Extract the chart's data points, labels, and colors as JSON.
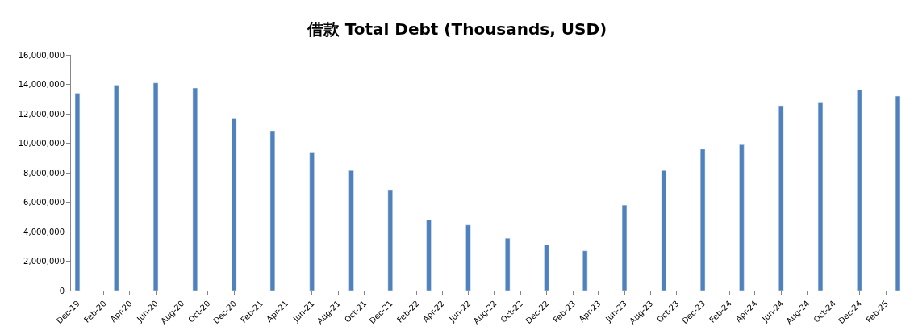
{
  "chart_data": {
    "type": "bar",
    "title": "借款 Total Debt (Thousands, USD)",
    "x": [
      "2019-12",
      "2020-03",
      "2020-06",
      "2020-09",
      "2020-12",
      "2021-03",
      "2021-06",
      "2021-09",
      "2021-12",
      "2022-03",
      "2022-06",
      "2022-09",
      "2022-12",
      "2023-03",
      "2023-06",
      "2023-09",
      "2023-12",
      "2024-03",
      "2024-06",
      "2024-09",
      "2024-12",
      "2025-03"
    ],
    "values": [
      13400000,
      13950000,
      14100000,
      13750000,
      11700000,
      10850000,
      9400000,
      8150000,
      6850000,
      4800000,
      4450000,
      3550000,
      3100000,
      2700000,
      5800000,
      8150000,
      9600000,
      9900000,
      12550000,
      12800000,
      13650000,
      13200000
    ],
    "color": "#4f81bd",
    "xlim": [
      "2019-11-16",
      "2025-03-16"
    ],
    "xticks": [
      {
        "value": "2019-12",
        "label": "Dec-19"
      },
      {
        "value": "2020-02",
        "label": "Feb-20"
      },
      {
        "value": "2020-04",
        "label": "Apr-20"
      },
      {
        "value": "2020-06",
        "label": "Jun-20"
      },
      {
        "value": "2020-08",
        "label": "Aug-20"
      },
      {
        "value": "2020-10",
        "label": "Oct-20"
      },
      {
        "value": "2020-12",
        "label": "Dec-20"
      },
      {
        "value": "2021-02",
        "label": "Feb-21"
      },
      {
        "value": "2021-04",
        "label": "Apr-21"
      },
      {
        "value": "2021-06",
        "label": "Jun-21"
      },
      {
        "value": "2021-08",
        "label": "Aug-21"
      },
      {
        "value": "2021-10",
        "label": "Oct-21"
      },
      {
        "value": "2021-12",
        "label": "Dec-21"
      },
      {
        "value": "2022-02",
        "label": "Feb-22"
      },
      {
        "value": "2022-04",
        "label": "Apr-22"
      },
      {
        "value": "2022-06",
        "label": "Jun-22"
      },
      {
        "value": "2022-08",
        "label": "Aug-22"
      },
      {
        "value": "2022-10",
        "label": "Oct-22"
      },
      {
        "value": "2022-12",
        "label": "Dec-22"
      },
      {
        "value": "2023-02",
        "label": "Feb-23"
      },
      {
        "value": "2023-04",
        "label": "Apr-23"
      },
      {
        "value": "2023-06",
        "label": "Jun-23"
      },
      {
        "value": "2023-08",
        "label": "Aug-23"
      },
      {
        "value": "2023-10",
        "label": "Oct-23"
      },
      {
        "value": "2023-12",
        "label": "Dec-23"
      },
      {
        "value": "2024-02",
        "label": "Feb-24"
      },
      {
        "value": "2024-04",
        "label": "Apr-24"
      },
      {
        "value": "2024-06",
        "label": "Jun-24"
      },
      {
        "value": "2024-08",
        "label": "Aug-24"
      },
      {
        "value": "2024-10",
        "label": "Oct-24"
      },
      {
        "value": "2024-12",
        "label": "Dec-24"
      },
      {
        "value": "2025-02",
        "label": "Feb-25"
      }
    ],
    "ylim": [
      0,
      16000000
    ],
    "yticks": [
      {
        "value": 0,
        "label": "0"
      },
      {
        "value": 2000000,
        "label": "2,000,000"
      },
      {
        "value": 4000000,
        "label": "4,000,000"
      },
      {
        "value": 6000000,
        "label": "6,000,000"
      },
      {
        "value": 8000000,
        "label": "8,000,000"
      },
      {
        "value": 10000000,
        "label": "10,000,000"
      },
      {
        "value": 12000000,
        "label": "12,000,000"
      },
      {
        "value": 14000000,
        "label": "14,000,000"
      },
      {
        "value": 16000000,
        "label": "16,000,000"
      }
    ],
    "grid": false
  }
}
